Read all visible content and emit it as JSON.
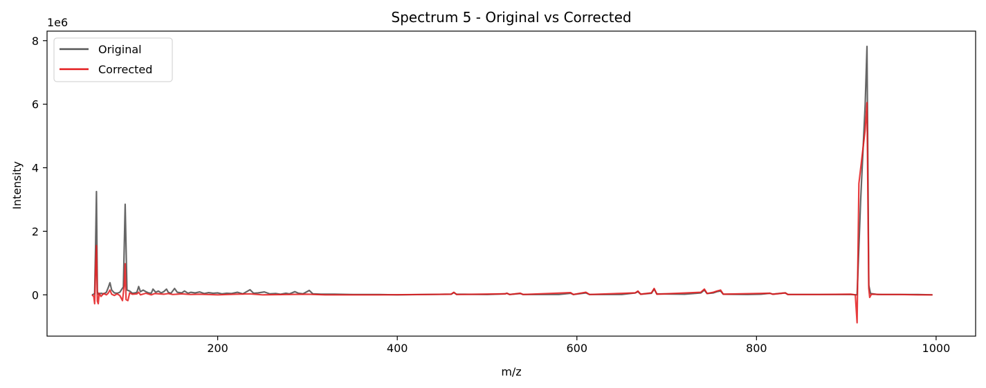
{
  "chart_data": {
    "type": "line",
    "title": "Spectrum 5 - Original vs Corrected",
    "xlabel": "m/z",
    "ylabel": "Intensity",
    "y_multiplier_label": "1e6",
    "xlim": [
      10,
      1044
    ],
    "ylim": [
      -1.3,
      8.3
    ],
    "x_ticks": [
      200,
      400,
      600,
      800,
      1000
    ],
    "y_ticks": [
      0,
      2,
      4,
      6,
      8
    ],
    "grid": false,
    "legend_position": "top-left",
    "series": [
      {
        "name": "Original",
        "color": "#555555",
        "points": [
          [
            60,
            0.0
          ],
          [
            62,
            0.02
          ],
          [
            63,
            0.05
          ],
          [
            64,
            1.5
          ],
          [
            65,
            3.25
          ],
          [
            66,
            0.1
          ],
          [
            67,
            0.02
          ],
          [
            70,
            0.05
          ],
          [
            73,
            0.03
          ],
          [
            76,
            0.08
          ],
          [
            78,
            0.22
          ],
          [
            80,
            0.38
          ],
          [
            82,
            0.15
          ],
          [
            85,
            0.06
          ],
          [
            88,
            0.05
          ],
          [
            91,
            0.08
          ],
          [
            95,
            0.25
          ],
          [
            97,
            2.85
          ],
          [
            99,
            0.15
          ],
          [
            102,
            0.12
          ],
          [
            105,
            0.05
          ],
          [
            108,
            0.06
          ],
          [
            110,
            0.08
          ],
          [
            112,
            0.26
          ],
          [
            114,
            0.1
          ],
          [
            117,
            0.15
          ],
          [
            120,
            0.1
          ],
          [
            123,
            0.06
          ],
          [
            126,
            0.05
          ],
          [
            128,
            0.18
          ],
          [
            131,
            0.08
          ],
          [
            134,
            0.12
          ],
          [
            137,
            0.06
          ],
          [
            140,
            0.1
          ],
          [
            143,
            0.18
          ],
          [
            145,
            0.08
          ],
          [
            148,
            0.05
          ],
          [
            152,
            0.2
          ],
          [
            155,
            0.08
          ],
          [
            160,
            0.06
          ],
          [
            163,
            0.12
          ],
          [
            167,
            0.05
          ],
          [
            170,
            0.08
          ],
          [
            175,
            0.06
          ],
          [
            180,
            0.09
          ],
          [
            185,
            0.04
          ],
          [
            190,
            0.07
          ],
          [
            195,
            0.05
          ],
          [
            200,
            0.06
          ],
          [
            205,
            0.03
          ],
          [
            210,
            0.05
          ],
          [
            215,
            0.04
          ],
          [
            222,
            0.08
          ],
          [
            228,
            0.03
          ],
          [
            236,
            0.16
          ],
          [
            240,
            0.05
          ],
          [
            245,
            0.06
          ],
          [
            252,
            0.09
          ],
          [
            258,
            0.03
          ],
          [
            265,
            0.04
          ],
          [
            270,
            0.02
          ],
          [
            276,
            0.05
          ],
          [
            280,
            0.03
          ],
          [
            286,
            0.1
          ],
          [
            290,
            0.05
          ],
          [
            295,
            0.03
          ],
          [
            302,
            0.14
          ],
          [
            306,
            0.03
          ],
          [
            315,
            0.02
          ],
          [
            330,
            0.02
          ],
          [
            350,
            0.01
          ],
          [
            380,
            0.01
          ],
          [
            400,
            0.0
          ],
          [
            430,
            0.01
          ],
          [
            460,
            0.02
          ],
          [
            463,
            0.07
          ],
          [
            466,
            0.02
          ],
          [
            500,
            0.01
          ],
          [
            520,
            0.03
          ],
          [
            522,
            0.05
          ],
          [
            525,
            0.01
          ],
          [
            537,
            0.04
          ],
          [
            540,
            0.01
          ],
          [
            580,
            0.01
          ],
          [
            593,
            0.05
          ],
          [
            596,
            0.01
          ],
          [
            610,
            0.06
          ],
          [
            614,
            0.01
          ],
          [
            650,
            0.01
          ],
          [
            665,
            0.06
          ],
          [
            668,
            0.1
          ],
          [
            671,
            0.02
          ],
          [
            683,
            0.05
          ],
          [
            686,
            0.18
          ],
          [
            689,
            0.03
          ],
          [
            720,
            0.02
          ],
          [
            738,
            0.06
          ],
          [
            742,
            0.15
          ],
          [
            745,
            0.04
          ],
          [
            752,
            0.06
          ],
          [
            756,
            0.1
          ],
          [
            760,
            0.12
          ],
          [
            763,
            0.02
          ],
          [
            790,
            0.01
          ],
          [
            805,
            0.02
          ],
          [
            815,
            0.05
          ],
          [
            818,
            0.02
          ],
          [
            832,
            0.06
          ],
          [
            835,
            0.01
          ],
          [
            870,
            0.01
          ],
          [
            905,
            0.01
          ],
          [
            912,
            0.0
          ],
          [
            916,
            3.0
          ],
          [
            921,
            6.0
          ],
          [
            923,
            7.82
          ],
          [
            925,
            0.3
          ],
          [
            927,
            0.04
          ],
          [
            935,
            0.01
          ],
          [
            945,
            0.01
          ],
          [
            960,
            0.01
          ],
          [
            980,
            0.01
          ],
          [
            996,
            0.0
          ]
        ]
      },
      {
        "name": "Corrected",
        "color": "#e31a1c",
        "points": [
          [
            60,
            0.0
          ],
          [
            62,
            -0.05
          ],
          [
            63,
            -0.28
          ],
          [
            64,
            0.8
          ],
          [
            65,
            1.55
          ],
          [
            66,
            -0.2
          ],
          [
            67,
            -0.28
          ],
          [
            68,
            0.05
          ],
          [
            70,
            -0.05
          ],
          [
            73,
            0.04
          ],
          [
            76,
            0.0
          ],
          [
            78,
            0.05
          ],
          [
            80,
            0.15
          ],
          [
            82,
            0.02
          ],
          [
            85,
            -0.02
          ],
          [
            88,
            0.03
          ],
          [
            91,
            -0.02
          ],
          [
            94,
            -0.18
          ],
          [
            96,
            0.3
          ],
          [
            97,
            0.98
          ],
          [
            98,
            -0.15
          ],
          [
            100,
            -0.18
          ],
          [
            102,
            0.06
          ],
          [
            105,
            0.02
          ],
          [
            110,
            0.03
          ],
          [
            112,
            0.08
          ],
          [
            114,
            0.0
          ],
          [
            120,
            0.05
          ],
          [
            126,
            0.0
          ],
          [
            130,
            0.04
          ],
          [
            140,
            0.02
          ],
          [
            145,
            0.04
          ],
          [
            150,
            0.01
          ],
          [
            160,
            0.03
          ],
          [
            170,
            0.01
          ],
          [
            180,
            0.02
          ],
          [
            200,
            0.0
          ],
          [
            220,
            0.02
          ],
          [
            236,
            0.03
          ],
          [
            250,
            0.0
          ],
          [
            300,
            0.02
          ],
          [
            320,
            0.0
          ],
          [
            380,
            0.0
          ],
          [
            430,
            0.01
          ],
          [
            460,
            0.02
          ],
          [
            463,
            0.08
          ],
          [
            466,
            0.01
          ],
          [
            520,
            0.03
          ],
          [
            522,
            0.05
          ],
          [
            525,
            0.01
          ],
          [
            537,
            0.05
          ],
          [
            540,
            0.01
          ],
          [
            593,
            0.07
          ],
          [
            596,
            0.01
          ],
          [
            610,
            0.08
          ],
          [
            614,
            0.01
          ],
          [
            665,
            0.06
          ],
          [
            668,
            0.12
          ],
          [
            671,
            0.02
          ],
          [
            683,
            0.06
          ],
          [
            686,
            0.2
          ],
          [
            689,
            0.02
          ],
          [
            738,
            0.08
          ],
          [
            742,
            0.18
          ],
          [
            745,
            0.04
          ],
          [
            752,
            0.08
          ],
          [
            756,
            0.12
          ],
          [
            760,
            0.15
          ],
          [
            763,
            0.02
          ],
          [
            815,
            0.05
          ],
          [
            818,
            0.02
          ],
          [
            832,
            0.06
          ],
          [
            835,
            0.01
          ],
          [
            870,
            0.01
          ],
          [
            905,
            0.02
          ],
          [
            910,
            0.0
          ],
          [
            912,
            -0.88
          ],
          [
            914,
            3.5
          ],
          [
            921,
            5.2
          ],
          [
            923,
            6.05
          ],
          [
            925,
            0.2
          ],
          [
            926,
            -0.08
          ],
          [
            928,
            0.02
          ],
          [
            940,
            0.01
          ],
          [
            960,
            0.01
          ],
          [
            980,
            0.0
          ],
          [
            996,
            0.0
          ]
        ]
      }
    ]
  }
}
